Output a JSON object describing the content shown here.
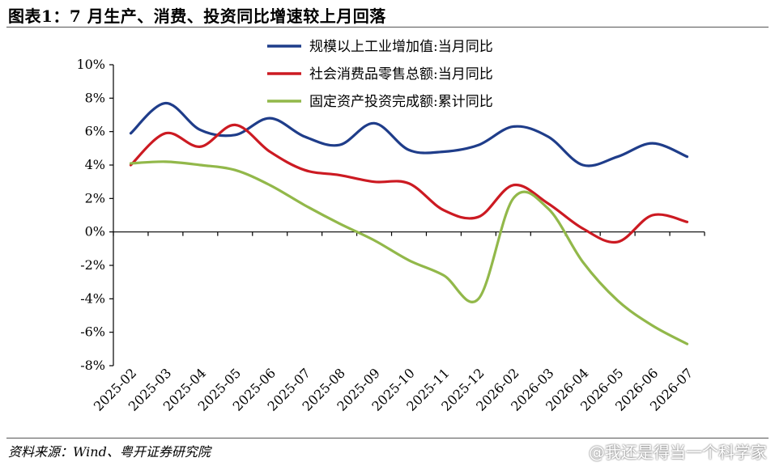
{
  "title": "图表1：7 月生产、消费、投资同比增速较上月回落",
  "source": "资料来源：Wind、粤开证券研究院",
  "watermark": "@我还是得当一个科学家",
  "chart_data": {
    "type": "line",
    "categories": [
      "2025-02",
      "2025-03",
      "2025-04",
      "2025-05",
      "2025-06",
      "2025-07",
      "2025-08",
      "2025-09",
      "2025-10",
      "2025-11",
      "2025-12",
      "2026-02",
      "2026-03",
      "2026-04",
      "2026-05",
      "2026-06",
      "2026-07"
    ],
    "ylim": [
      -8,
      10
    ],
    "yticks": [
      -8,
      -6,
      -4,
      -2,
      0,
      2,
      4,
      6,
      8,
      10
    ],
    "ytick_labels": [
      "-8%",
      "-6%",
      "-4%",
      "-2%",
      "0%",
      "2%",
      "4%",
      "6%",
      "8%",
      "10%"
    ],
    "grid": false,
    "legend_position": "top-right",
    "series": [
      {
        "name": "规模以上工业增加值:当月同比",
        "color": "#1f3d8a",
        "values": [
          5.9,
          7.7,
          6.1,
          5.8,
          6.8,
          5.7,
          5.2,
          6.5,
          4.9,
          4.8,
          5.2,
          6.3,
          5.7,
          4.0,
          4.5,
          5.3,
          4.5
        ]
      },
      {
        "name": "社会消费品零售总额:当月同比",
        "color": "#cc1a22",
        "values": [
          4.0,
          5.9,
          5.1,
          6.4,
          4.8,
          3.7,
          3.4,
          3.0,
          2.9,
          1.3,
          0.9,
          2.8,
          1.7,
          0.2,
          -0.6,
          1.0,
          0.6
        ]
      },
      {
        "name": "固定资产投资完成额:累计同比",
        "color": "#92b84a",
        "values": [
          4.1,
          4.2,
          4.0,
          3.7,
          2.8,
          1.6,
          0.5,
          -0.5,
          -1.7,
          -2.6,
          -4.0,
          2.0,
          1.4,
          -1.8,
          -4.1,
          -5.6,
          -6.7
        ]
      }
    ]
  }
}
